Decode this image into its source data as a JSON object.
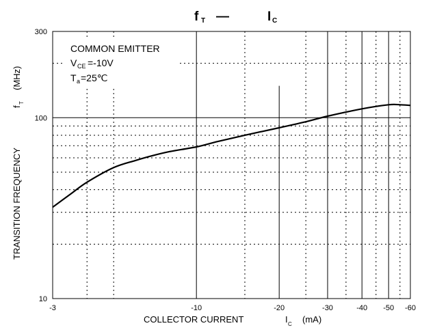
{
  "chart_data": {
    "type": "line",
    "title": {
      "main_1": "f",
      "sub_1": "T",
      "dash": "—",
      "main_2": "I",
      "sub_2": "C"
    },
    "x_label": {
      "text": "COLLECTOR CURRENT",
      "symbol": "I",
      "symbol_sub": "C",
      "unit": "(mA)"
    },
    "y_label": {
      "text": "TRANSITION FREQUENCY",
      "symbol": "f",
      "symbol_sub": "T",
      "unit": "(MHz)"
    },
    "x_scale": "log",
    "y_scale": "log",
    "x_range": [
      -3,
      -60
    ],
    "y_range": [
      10,
      300
    ],
    "x_ticks": [
      "-3",
      "-10",
      "-20",
      "-30",
      "-40",
      "-50",
      "-60"
    ],
    "y_ticks": [
      "300",
      "100",
      "10"
    ],
    "grid": "on",
    "annotation": {
      "line1": "COMMON EMITTER",
      "line2_pre": "V",
      "line2_sub": "CE",
      "line2_post": "=-10V",
      "line3_pre": "T",
      "line3_sub": "a",
      "line3_post": "=25℃"
    },
    "series": [
      {
        "x": [
          -3,
          -3.5,
          -4,
          -5,
          -6,
          -7,
          -8,
          -10,
          -12,
          -15,
          -20,
          -25,
          -30,
          -40,
          -50,
          -55,
          -60
        ],
        "y": [
          32,
          38,
          44,
          53,
          58,
          62,
          65,
          69,
          74,
          80,
          88,
          95,
          102,
          112,
          118,
          118,
          117
        ]
      }
    ]
  }
}
